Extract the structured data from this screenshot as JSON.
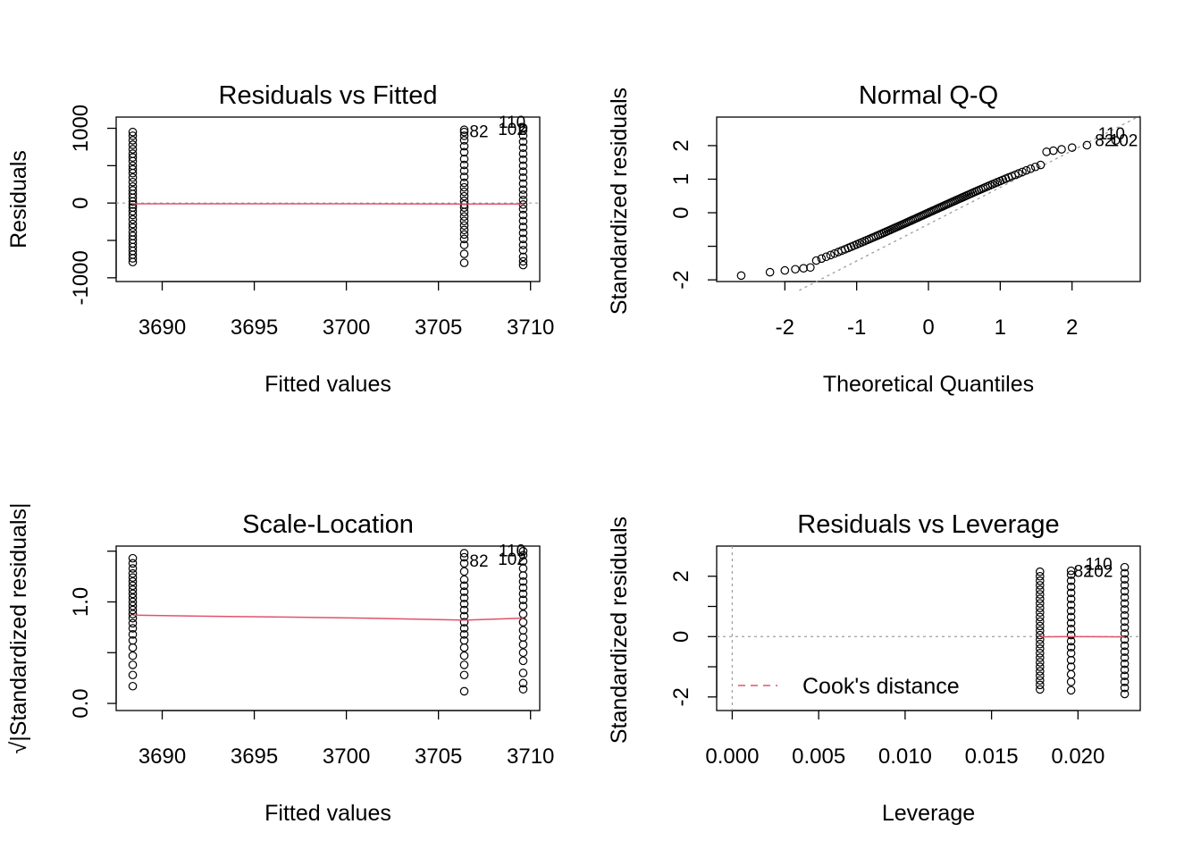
{
  "chart_data": [
    {
      "id": "p1",
      "type": "scatter",
      "title": "Residuals vs Fitted",
      "xlabel": "Fitted values",
      "ylabel": "Residuals",
      "xlim": [
        3687.5,
        3710.5
      ],
      "ylim": [
        -1050,
        1150
      ],
      "xticks": [
        3690,
        3695,
        3700,
        3705,
        3710
      ],
      "yticks": [
        -1000,
        -500,
        0,
        500,
        1000
      ],
      "ytick_labels": [
        "-1000",
        "",
        "0",
        "",
        "1000"
      ],
      "fitted_groups": [
        3688.4,
        3706.4,
        3709.6
      ],
      "residuals": [
        [
          -790,
          -740,
          -690,
          -640,
          -590,
          -540,
          -490,
          -440,
          -390,
          -330,
          -280,
          -220,
          -160,
          -110,
          -60,
          -20,
          20,
          70,
          120,
          170,
          220,
          280,
          340,
          400,
          450,
          500,
          560,
          610,
          660,
          720,
          780,
          840,
          900,
          950
        ],
        [
          -800,
          -680,
          -560,
          -480,
          -420,
          -360,
          -300,
          -240,
          -180,
          -120,
          -60,
          -20,
          30,
          90,
          150,
          210,
          270,
          350,
          430,
          510,
          590,
          680,
          760,
          840,
          900,
          950,
          980
        ],
        [
          -830,
          -780,
          -720,
          -630,
          -560,
          -480,
          -400,
          -320,
          -240,
          -160,
          -80,
          -20,
          40,
          110,
          180,
          260,
          340,
          420,
          500,
          580,
          660,
          740,
          820,
          900,
          970,
          1000,
          1010
        ]
      ],
      "smooth": [
        [
          3688.4,
          -10
        ],
        [
          3697,
          -10
        ],
        [
          3706.4,
          -12
        ],
        [
          3709.6,
          -12
        ]
      ],
      "point_labels": [
        {
          "text": "110",
          "x": 3709.0,
          "y": 1080
        },
        {
          "text": "82",
          "x": 3707.2,
          "y": 950
        },
        {
          "text": "102",
          "x": 3709.0,
          "y": 980
        }
      ]
    },
    {
      "id": "p2",
      "type": "scatter",
      "title": "Normal Q-Q",
      "xlabel": "Theoretical Quantiles",
      "ylabel": "Standardized residuals",
      "xlim": [
        -2.95,
        2.95
      ],
      "ylim": [
        -2.05,
        2.85
      ],
      "xticks": [
        -2,
        -1,
        0,
        1,
        2
      ],
      "yticks": [
        -2,
        -1,
        0,
        1,
        2
      ],
      "ytick_labels": [
        "-2",
        "",
        "0",
        "1",
        "2"
      ],
      "n_points": 110,
      "reference_line": {
        "intercept": 0,
        "slope": 0.98
      },
      "point_labels": [
        {
          "text": "110",
          "x": 2.55,
          "y": 2.35
        },
        {
          "text": "82",
          "x": 2.45,
          "y": 2.15
        },
        {
          "text": "102",
          "x": 2.72,
          "y": 2.15
        }
      ]
    },
    {
      "id": "p3",
      "type": "scatter",
      "title": "Scale-Location",
      "xlabel": "Fitted values",
      "ylabel": "√|Standardized residuals|",
      "xlim": [
        3687.5,
        3710.5
      ],
      "ylim": [
        -0.07,
        1.55
      ],
      "xticks": [
        3690,
        3695,
        3700,
        3705,
        3710
      ],
      "yticks": [
        0.0,
        0.5,
        1.0,
        1.5
      ],
      "ytick_labels": [
        "0.0",
        "",
        "1.0",
        ""
      ],
      "fitted_groups": [
        3688.4,
        3706.4,
        3709.6
      ],
      "values": [
        [
          0.17,
          0.28,
          0.38,
          0.47,
          0.55,
          0.62,
          0.68,
          0.74,
          0.79,
          0.84,
          0.88,
          0.92,
          0.96,
          1.0,
          1.04,
          1.08,
          1.12,
          1.16,
          1.2,
          1.24,
          1.28,
          1.33,
          1.38,
          1.43
        ],
        [
          0.12,
          0.28,
          0.38,
          0.47,
          0.55,
          0.62,
          0.68,
          0.74,
          0.8,
          0.86,
          0.92,
          0.98,
          1.04,
          1.1,
          1.16,
          1.22,
          1.3,
          1.38,
          1.44,
          1.48
        ],
        [
          0.14,
          0.2,
          0.3,
          0.42,
          0.5,
          0.58,
          0.65,
          0.72,
          0.8,
          0.88,
          0.96,
          1.02,
          1.08,
          1.14,
          1.2,
          1.26,
          1.33,
          1.4,
          1.46,
          1.5
        ]
      ],
      "smooth": [
        [
          3688.4,
          0.87
        ],
        [
          3692,
          0.86
        ],
        [
          3697,
          0.85
        ],
        [
          3701,
          0.84
        ],
        [
          3706.4,
          0.82
        ],
        [
          3709.6,
          0.84
        ]
      ],
      "point_labels": [
        {
          "text": "110",
          "x": 3709.0,
          "y": 1.5
        },
        {
          "text": "82",
          "x": 3707.2,
          "y": 1.4
        },
        {
          "text": "102",
          "x": 3709.0,
          "y": 1.42
        }
      ]
    },
    {
      "id": "p4",
      "type": "scatter",
      "title": "Residuals vs Leverage",
      "xlabel": "Leverage",
      "ylabel": "Standardized residuals",
      "xlim": [
        -0.0009,
        0.0236
      ],
      "ylim": [
        -2.45,
        3.0
      ],
      "xticks": [
        0.0,
        0.005,
        0.01,
        0.015,
        0.02
      ],
      "xtick_labels": [
        "0.000",
        "0.005",
        "0.010",
        "0.015",
        "0.020"
      ],
      "yticks": [
        -2,
        -1,
        0,
        1,
        2
      ],
      "ytick_labels": [
        "-2",
        "",
        "0",
        "",
        "2"
      ],
      "leverage_groups": [
        0.0178,
        0.0196,
        0.0227
      ],
      "std_residuals": [
        [
          -1.75,
          -1.6,
          -1.45,
          -1.3,
          -1.15,
          -1.0,
          -0.85,
          -0.7,
          -0.55,
          -0.4,
          -0.25,
          -0.1,
          0.05,
          0.2,
          0.35,
          0.5,
          0.65,
          0.8,
          0.95,
          1.1,
          1.25,
          1.4,
          1.55,
          1.7,
          1.85,
          2.0,
          2.15
        ],
        [
          -1.78,
          -1.5,
          -1.25,
          -1.0,
          -0.78,
          -0.55,
          -0.35,
          -0.15,
          0.05,
          0.25,
          0.45,
          0.65,
          0.85,
          1.05,
          1.25,
          1.45,
          1.65,
          1.85,
          2.05,
          2.18
        ],
        [
          -1.9,
          -1.7,
          -1.5,
          -1.3,
          -1.1,
          -0.9,
          -0.7,
          -0.5,
          -0.3,
          -0.1,
          0.1,
          0.3,
          0.5,
          0.7,
          0.9,
          1.1,
          1.3,
          1.5,
          1.7,
          1.9,
          2.1,
          2.3
        ]
      ],
      "smooth": [
        [
          0.0178,
          -0.01
        ],
        [
          0.0196,
          0.0
        ],
        [
          0.0227,
          -0.01
        ]
      ],
      "point_labels": [
        {
          "text": "110",
          "x": 0.0212,
          "y": 2.4
        },
        {
          "text": "82",
          "x": 0.0203,
          "y": 2.15
        },
        {
          "text": "102",
          "x": 0.0212,
          "y": 2.15
        }
      ],
      "legend": {
        "label": "Cook's distance",
        "placement": "bottom-left"
      }
    }
  ]
}
